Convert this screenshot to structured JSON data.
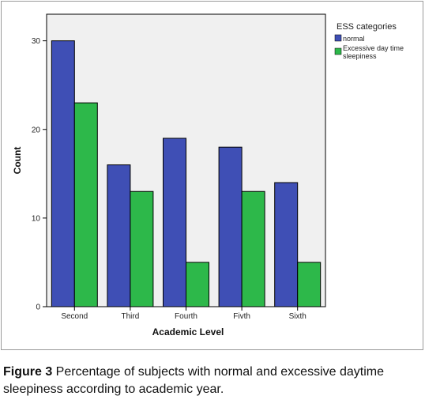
{
  "chart_data": {
    "type": "bar",
    "categories": [
      "Second",
      "Third",
      "Fourth",
      "Fivth",
      "Sixth"
    ],
    "series": [
      {
        "name": "normal",
        "values": [
          30,
          16,
          19,
          18,
          14
        ],
        "color": "#3f4fb5"
      },
      {
        "name": "Excessive day time sleepiness",
        "values": [
          23,
          13,
          5,
          13,
          5
        ],
        "color": "#2db84a"
      }
    ],
    "xlabel": "Academic Level",
    "ylabel": "Count",
    "ylim": [
      0,
      33
    ],
    "yticks": [
      "0",
      "10",
      "20",
      "30"
    ],
    "legend": {
      "title": "ESS categories",
      "position": "top-right",
      "entries": [
        "normal",
        "Excessive day time sleepiness"
      ]
    },
    "grid": false
  },
  "caption": {
    "label": "Figure 3",
    "text": " Percentage of subjects with normal and excessive daytime sleepiness according to academic year."
  }
}
